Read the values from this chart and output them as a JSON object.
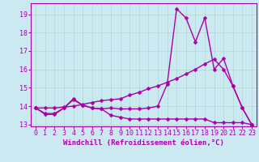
{
  "background_color": "#cbe9f0",
  "line_color": "#aa00aa",
  "grid_color": "#b0d8d0",
  "xlabel": "Windchill (Refroidissement éolien,°C)",
  "xlabel_fontsize": 6.5,
  "tick_fontsize": 6,
  "xlim": [
    -0.5,
    23.5
  ],
  "ylim": [
    12.9,
    19.6
  ],
  "yticks": [
    13,
    14,
    15,
    16,
    17,
    18,
    19
  ],
  "xticks": [
    0,
    1,
    2,
    3,
    4,
    5,
    6,
    7,
    8,
    9,
    10,
    11,
    12,
    13,
    14,
    15,
    16,
    17,
    18,
    19,
    20,
    21,
    22,
    23
  ],
  "series": [
    {
      "x": [
        0,
        1,
        2,
        3,
        4,
        5,
        6,
        7,
        8,
        9,
        10,
        11,
        12,
        13,
        14,
        15,
        16,
        17,
        18,
        19,
        20,
        21,
        22,
        23
      ],
      "y": [
        13.9,
        13.6,
        13.6,
        13.9,
        14.4,
        14.05,
        13.9,
        13.85,
        13.9,
        13.85,
        13.85,
        13.85,
        13.9,
        14.0,
        15.2,
        19.3,
        18.8,
        17.5,
        18.8,
        16.0,
        16.6,
        15.1,
        13.9,
        13.0
      ],
      "linewidth": 1.0
    },
    {
      "x": [
        0,
        1,
        2,
        3,
        4,
        5,
        6,
        7,
        8,
        9,
        10,
        11,
        12,
        13,
        14,
        15,
        16,
        17,
        18,
        19,
        20,
        21,
        22,
        23
      ],
      "y": [
        13.9,
        13.9,
        13.9,
        13.95,
        14.0,
        14.1,
        14.2,
        14.3,
        14.35,
        14.4,
        14.6,
        14.75,
        14.95,
        15.1,
        15.3,
        15.5,
        15.75,
        16.0,
        16.3,
        16.55,
        16.0,
        15.1,
        13.9,
        13.0
      ],
      "linewidth": 1.0
    },
    {
      "x": [
        0,
        1,
        2,
        3,
        4,
        5,
        6,
        7,
        8,
        9,
        10,
        11,
        12,
        13,
        14,
        15,
        16,
        17,
        18,
        19,
        20,
        21,
        22,
        23
      ],
      "y": [
        13.9,
        13.55,
        13.55,
        13.9,
        14.35,
        14.05,
        13.9,
        13.85,
        13.5,
        13.4,
        13.3,
        13.3,
        13.3,
        13.3,
        13.3,
        13.3,
        13.3,
        13.3,
        13.3,
        13.1,
        13.1,
        13.1,
        13.1,
        13.0
      ],
      "linewidth": 1.0
    }
  ],
  "marker": "D",
  "markersize": 2.5
}
